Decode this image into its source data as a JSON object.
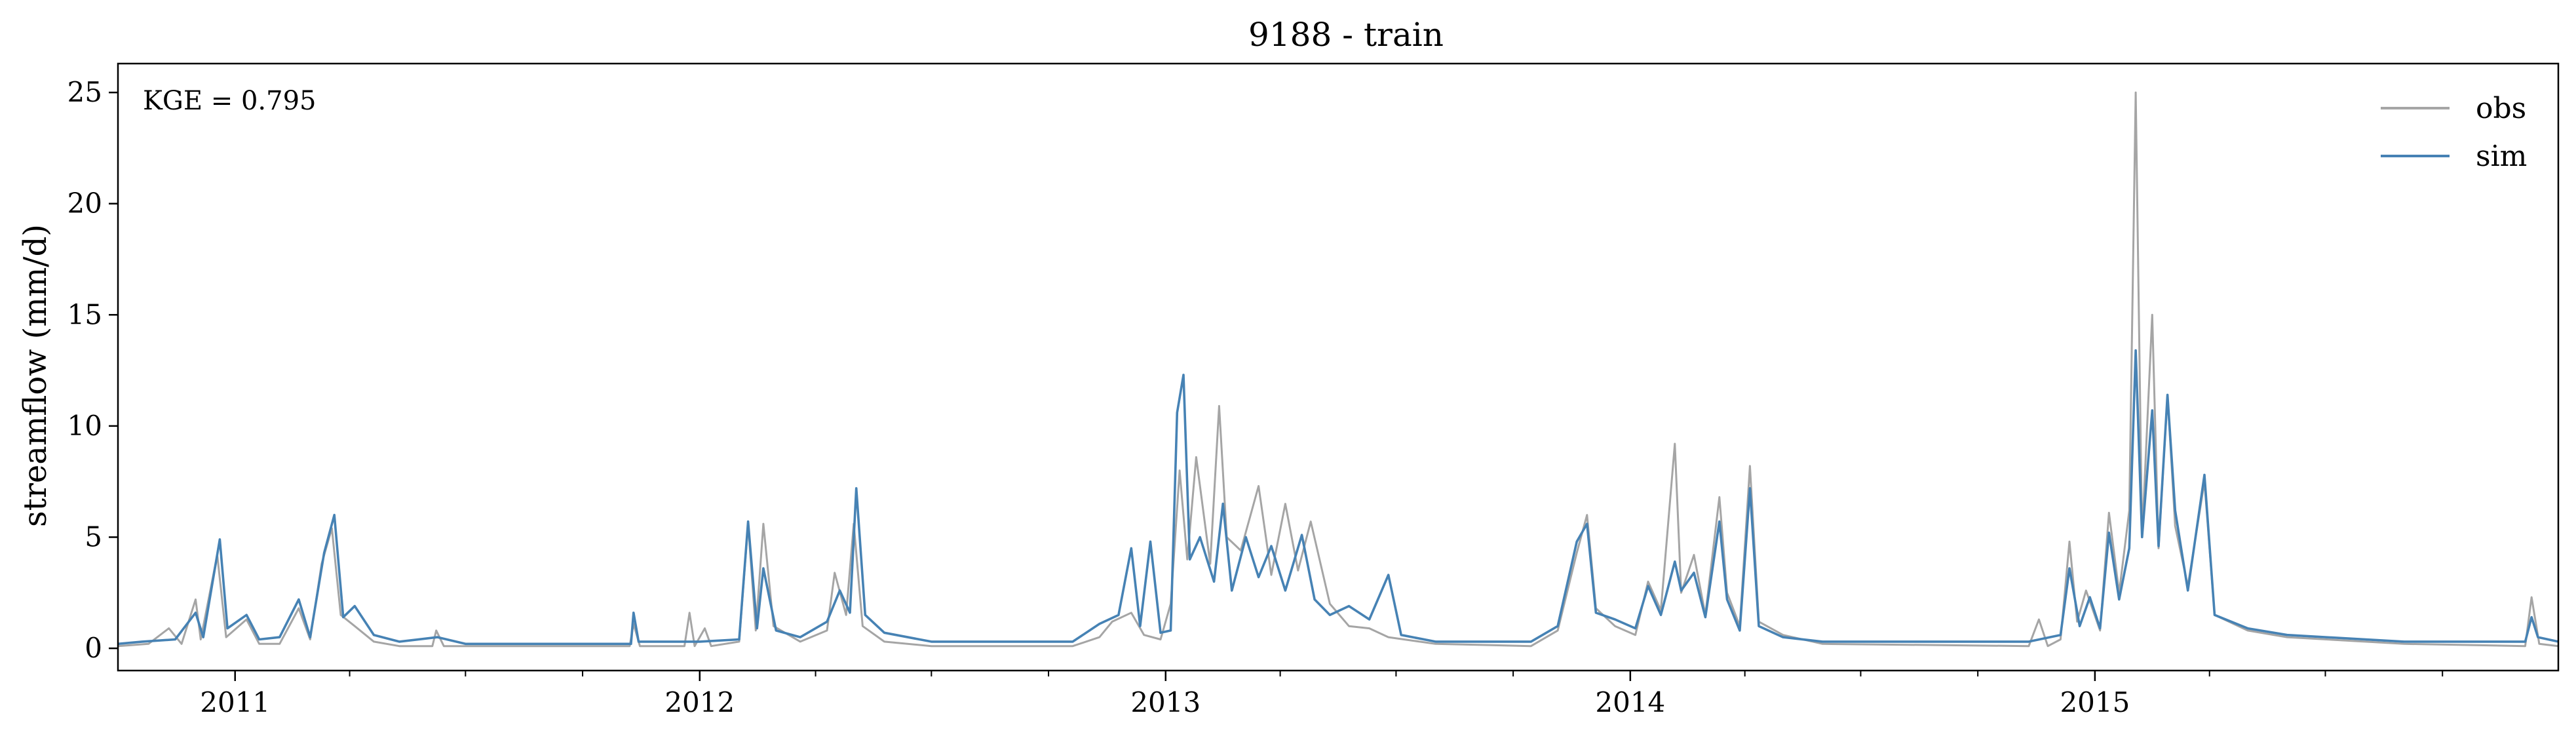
{
  "chart_data": {
    "type": "line",
    "title": "9188 - train",
    "xlabel": "",
    "ylabel": "streamflow (mm/d)",
    "xlim": [
      "2010-10-01",
      "2015-12-31"
    ],
    "ylim": [
      -1,
      26.3
    ],
    "yticks": [
      0,
      5,
      10,
      15,
      20,
      25
    ],
    "xticks": [
      {
        "date": "2011-01-01",
        "label": "2011"
      },
      {
        "date": "2012-01-01",
        "label": "2012"
      },
      {
        "date": "2013-01-01",
        "label": "2013"
      },
      {
        "date": "2014-01-01",
        "label": "2014"
      },
      {
        "date": "2015-01-01",
        "label": "2015"
      }
    ],
    "grid": false,
    "legend_position": "top-right",
    "annotation": "KGE = 0.795",
    "series": [
      {
        "name": "obs",
        "color": "#a5a5a5",
        "points": [
          [
            "2010-10-01",
            0.1
          ],
          [
            "2010-10-25",
            0.2
          ],
          [
            "2010-11-10",
            0.9
          ],
          [
            "2010-11-20",
            0.2
          ],
          [
            "2010-12-01",
            2.2
          ],
          [
            "2010-12-05",
            0.4
          ],
          [
            "2010-12-18",
            4.2
          ],
          [
            "2010-12-25",
            0.5
          ],
          [
            "2011-01-10",
            1.3
          ],
          [
            "2011-01-20",
            0.2
          ],
          [
            "2011-02-05",
            0.2
          ],
          [
            "2011-02-20",
            1.8
          ],
          [
            "2011-03-01",
            0.4
          ],
          [
            "2011-03-10",
            3.8
          ],
          [
            "2011-03-18",
            5.4
          ],
          [
            "2011-03-25",
            1.5
          ],
          [
            "2011-04-05",
            1.0
          ],
          [
            "2011-04-20",
            0.3
          ],
          [
            "2011-05-10",
            0.1
          ],
          [
            "2011-06-05",
            0.1
          ],
          [
            "2011-06-08",
            0.8
          ],
          [
            "2011-06-14",
            0.1
          ],
          [
            "2011-09-01",
            0.1
          ],
          [
            "2011-11-07",
            0.1
          ],
          [
            "2011-11-10",
            1.1
          ],
          [
            "2011-11-15",
            0.1
          ],
          [
            "2011-12-20",
            0.1
          ],
          [
            "2011-12-24",
            1.6
          ],
          [
            "2011-12-28",
            0.1
          ],
          [
            "2012-01-05",
            0.9
          ],
          [
            "2012-01-10",
            0.1
          ],
          [
            "2012-02-01",
            0.3
          ],
          [
            "2012-02-08",
            5.6
          ],
          [
            "2012-02-14",
            0.8
          ],
          [
            "2012-02-20",
            5.6
          ],
          [
            "2012-02-28",
            1.0
          ],
          [
            "2012-03-20",
            0.3
          ],
          [
            "2012-04-10",
            0.8
          ],
          [
            "2012-04-16",
            3.4
          ],
          [
            "2012-04-25",
            1.5
          ],
          [
            "2012-05-01",
            5.6
          ],
          [
            "2012-05-08",
            1.0
          ],
          [
            "2012-05-25",
            0.3
          ],
          [
            "2012-07-01",
            0.1
          ],
          [
            "2012-10-20",
            0.1
          ],
          [
            "2012-11-10",
            0.5
          ],
          [
            "2012-11-20",
            1.2
          ],
          [
            "2012-12-05",
            1.6
          ],
          [
            "2012-12-15",
            0.6
          ],
          [
            "2012-12-28",
            0.4
          ],
          [
            "2013-01-05",
            2.0
          ],
          [
            "2013-01-12",
            8.0
          ],
          [
            "2013-01-18",
            4.0
          ],
          [
            "2013-01-25",
            8.6
          ],
          [
            "2013-02-05",
            3.8
          ],
          [
            "2013-02-12",
            10.9
          ],
          [
            "2013-02-18",
            5.0
          ],
          [
            "2013-03-01",
            4.4
          ],
          [
            "2013-03-15",
            7.3
          ],
          [
            "2013-03-25",
            3.3
          ],
          [
            "2013-04-05",
            6.5
          ],
          [
            "2013-04-15",
            3.5
          ],
          [
            "2013-04-25",
            5.7
          ],
          [
            "2013-05-10",
            2.0
          ],
          [
            "2013-05-25",
            1.0
          ],
          [
            "2013-06-10",
            0.9
          ],
          [
            "2013-06-25",
            0.5
          ],
          [
            "2013-08-01",
            0.2
          ],
          [
            "2013-10-15",
            0.1
          ],
          [
            "2013-11-05",
            0.8
          ],
          [
            "2013-11-20",
            4.3
          ],
          [
            "2013-11-28",
            6.0
          ],
          [
            "2013-12-05",
            1.8
          ],
          [
            "2013-12-20",
            1.0
          ],
          [
            "2014-01-05",
            0.6
          ],
          [
            "2014-01-15",
            3.0
          ],
          [
            "2014-01-25",
            1.7
          ],
          [
            "2014-02-05",
            9.2
          ],
          [
            "2014-02-10",
            2.5
          ],
          [
            "2014-02-20",
            4.2
          ],
          [
            "2014-03-01",
            1.5
          ],
          [
            "2014-03-12",
            6.8
          ],
          [
            "2014-03-18",
            2.5
          ],
          [
            "2014-03-28",
            1.0
          ],
          [
            "2014-04-05",
            8.2
          ],
          [
            "2014-04-12",
            1.2
          ],
          [
            "2014-05-01",
            0.6
          ],
          [
            "2014-06-01",
            0.2
          ],
          [
            "2014-11-10",
            0.1
          ],
          [
            "2014-11-18",
            1.3
          ],
          [
            "2014-11-25",
            0.1
          ],
          [
            "2014-12-05",
            0.4
          ],
          [
            "2014-12-12",
            4.8
          ],
          [
            "2014-12-18",
            1.2
          ],
          [
            "2014-12-25",
            2.6
          ],
          [
            "2015-01-05",
            0.8
          ],
          [
            "2015-01-12",
            6.1
          ],
          [
            "2015-01-20",
            2.5
          ],
          [
            "2015-01-28",
            6.2
          ],
          [
            "2015-02-02",
            25.0
          ],
          [
            "2015-02-07",
            5.0
          ],
          [
            "2015-02-15",
            15.0
          ],
          [
            "2015-02-20",
            4.5
          ],
          [
            "2015-02-27",
            11.4
          ],
          [
            "2015-03-05",
            5.5
          ],
          [
            "2015-03-15",
            2.8
          ],
          [
            "2015-03-28",
            7.5
          ],
          [
            "2015-04-05",
            1.5
          ],
          [
            "2015-05-01",
            0.8
          ],
          [
            "2015-06-01",
            0.5
          ],
          [
            "2015-09-01",
            0.2
          ],
          [
            "2015-12-05",
            0.1
          ],
          [
            "2015-12-10",
            2.3
          ],
          [
            "2015-12-16",
            0.2
          ],
          [
            "2015-12-31",
            0.1
          ]
        ]
      },
      {
        "name": "sim",
        "color": "#4682b4",
        "points": [
          [
            "2010-10-01",
            0.2
          ],
          [
            "2010-10-20",
            0.3
          ],
          [
            "2010-11-15",
            0.4
          ],
          [
            "2010-12-01",
            1.6
          ],
          [
            "2010-12-07",
            0.5
          ],
          [
            "2010-12-20",
            4.9
          ],
          [
            "2010-12-26",
            0.9
          ],
          [
            "2011-01-10",
            1.5
          ],
          [
            "2011-01-20",
            0.4
          ],
          [
            "2011-02-05",
            0.5
          ],
          [
            "2011-02-20",
            2.2
          ],
          [
            "2011-03-01",
            0.5
          ],
          [
            "2011-03-12",
            4.3
          ],
          [
            "2011-03-20",
            6.0
          ],
          [
            "2011-03-27",
            1.4
          ],
          [
            "2011-04-05",
            1.9
          ],
          [
            "2011-04-20",
            0.6
          ],
          [
            "2011-05-10",
            0.3
          ],
          [
            "2011-06-09",
            0.5
          ],
          [
            "2011-07-01",
            0.2
          ],
          [
            "2011-11-08",
            0.2
          ],
          [
            "2011-11-10",
            1.6
          ],
          [
            "2011-11-14",
            0.3
          ],
          [
            "2012-01-01",
            0.3
          ],
          [
            "2012-02-01",
            0.4
          ],
          [
            "2012-02-08",
            5.7
          ],
          [
            "2012-02-15",
            0.9
          ],
          [
            "2012-02-20",
            3.6
          ],
          [
            "2012-03-01",
            0.8
          ],
          [
            "2012-03-20",
            0.5
          ],
          [
            "2012-04-10",
            1.2
          ],
          [
            "2012-04-20",
            2.6
          ],
          [
            "2012-04-28",
            1.6
          ],
          [
            "2012-05-03",
            7.2
          ],
          [
            "2012-05-10",
            1.5
          ],
          [
            "2012-05-25",
            0.7
          ],
          [
            "2012-07-01",
            0.3
          ],
          [
            "2012-10-20",
            0.3
          ],
          [
            "2012-11-10",
            1.1
          ],
          [
            "2012-11-25",
            1.5
          ],
          [
            "2012-12-05",
            4.5
          ],
          [
            "2012-12-12",
            1.0
          ],
          [
            "2012-12-20",
            4.8
          ],
          [
            "2012-12-28",
            0.7
          ],
          [
            "2013-01-05",
            0.8
          ],
          [
            "2013-01-10",
            10.6
          ],
          [
            "2013-01-15",
            12.3
          ],
          [
            "2013-01-20",
            4.0
          ],
          [
            "2013-01-28",
            5.0
          ],
          [
            "2013-02-08",
            3.0
          ],
          [
            "2013-02-15",
            6.5
          ],
          [
            "2013-02-22",
            2.6
          ],
          [
            "2013-03-05",
            5.0
          ],
          [
            "2013-03-15",
            3.2
          ],
          [
            "2013-03-25",
            4.6
          ],
          [
            "2013-04-05",
            2.6
          ],
          [
            "2013-04-18",
            5.1
          ],
          [
            "2013-04-28",
            2.2
          ],
          [
            "2013-05-10",
            1.5
          ],
          [
            "2013-05-25",
            1.9
          ],
          [
            "2013-06-10",
            1.3
          ],
          [
            "2013-06-25",
            3.3
          ],
          [
            "2013-07-05",
            0.6
          ],
          [
            "2013-08-01",
            0.3
          ],
          [
            "2013-10-15",
            0.3
          ],
          [
            "2013-11-05",
            1.0
          ],
          [
            "2013-11-20",
            4.8
          ],
          [
            "2013-11-28",
            5.6
          ],
          [
            "2013-12-05",
            1.6
          ],
          [
            "2013-12-20",
            1.3
          ],
          [
            "2014-01-05",
            0.9
          ],
          [
            "2014-01-15",
            2.8
          ],
          [
            "2014-01-25",
            1.5
          ],
          [
            "2014-02-05",
            3.9
          ],
          [
            "2014-02-10",
            2.6
          ],
          [
            "2014-02-20",
            3.4
          ],
          [
            "2014-03-01",
            1.4
          ],
          [
            "2014-03-12",
            5.7
          ],
          [
            "2014-03-18",
            2.2
          ],
          [
            "2014-03-28",
            0.8
          ],
          [
            "2014-04-05",
            7.2
          ],
          [
            "2014-04-12",
            1.0
          ],
          [
            "2014-05-01",
            0.5
          ],
          [
            "2014-06-01",
            0.3
          ],
          [
            "2014-11-10",
            0.3
          ],
          [
            "2014-12-05",
            0.6
          ],
          [
            "2014-12-12",
            3.6
          ],
          [
            "2014-12-20",
            1.0
          ],
          [
            "2014-12-28",
            2.3
          ],
          [
            "2015-01-05",
            0.9
          ],
          [
            "2015-01-12",
            5.2
          ],
          [
            "2015-01-20",
            2.2
          ],
          [
            "2015-01-28",
            4.5
          ],
          [
            "2015-02-02",
            13.4
          ],
          [
            "2015-02-07",
            5.0
          ],
          [
            "2015-02-15",
            10.7
          ],
          [
            "2015-02-20",
            4.6
          ],
          [
            "2015-02-27",
            11.4
          ],
          [
            "2015-03-05",
            6.2
          ],
          [
            "2015-03-15",
            2.6
          ],
          [
            "2015-03-28",
            7.8
          ],
          [
            "2015-04-05",
            1.5
          ],
          [
            "2015-05-01",
            0.9
          ],
          [
            "2015-06-01",
            0.6
          ],
          [
            "2015-09-01",
            0.3
          ],
          [
            "2015-12-05",
            0.3
          ],
          [
            "2015-12-10",
            1.4
          ],
          [
            "2015-12-15",
            0.5
          ],
          [
            "2015-12-31",
            0.3
          ]
        ]
      }
    ]
  }
}
